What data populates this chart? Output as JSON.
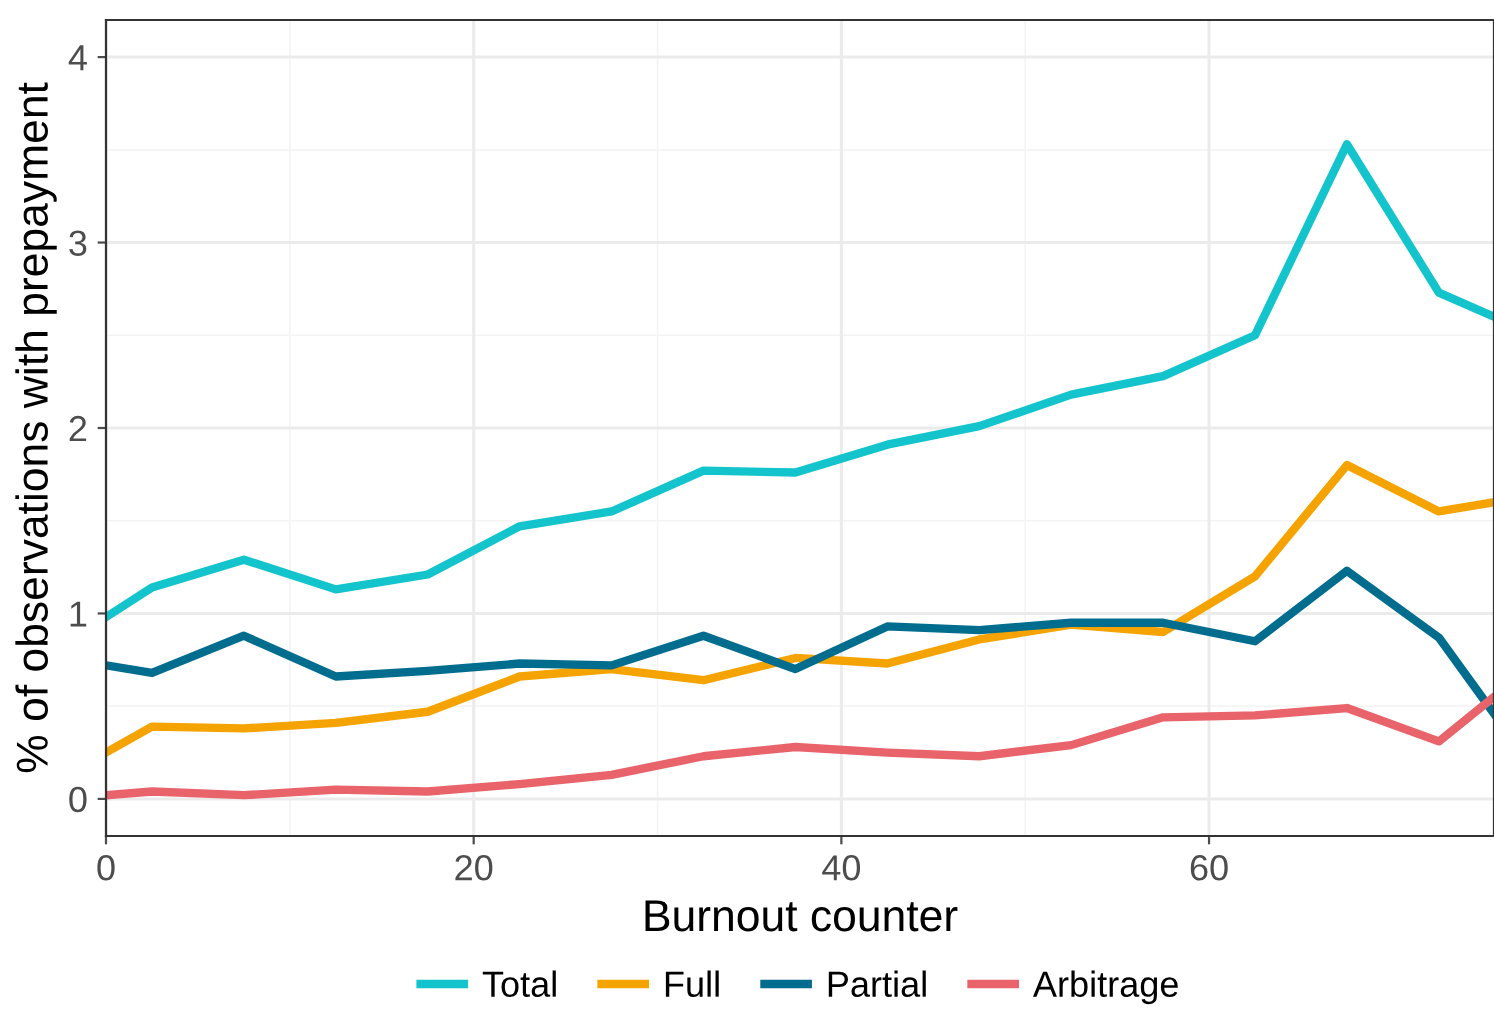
{
  "chart_data": {
    "type": "line",
    "xlabel": "Burnout counter",
    "ylabel": "% of observations with prepayment",
    "x": [
      0,
      2.5,
      7.5,
      12.5,
      17.5,
      22.5,
      27.5,
      32.5,
      37.5,
      42.5,
      47.5,
      52.5,
      57.5,
      62.5,
      67.5,
      72.5,
      75.5
    ],
    "series": [
      {
        "name": "Total",
        "color": "#14c4cc",
        "values": [
          0.98,
          1.14,
          1.29,
          1.13,
          1.21,
          1.47,
          1.55,
          1.77,
          1.76,
          1.91,
          2.01,
          2.18,
          2.28,
          2.5,
          3.53,
          2.73,
          2.6
        ]
      },
      {
        "name": "Full",
        "color": "#f5a300",
        "values": [
          0.25,
          0.39,
          0.38,
          0.41,
          0.47,
          0.66,
          0.7,
          0.64,
          0.76,
          0.73,
          0.86,
          0.94,
          0.9,
          1.2,
          1.8,
          1.55,
          1.6
        ]
      },
      {
        "name": "Partial",
        "color": "#006d8f",
        "values": [
          0.72,
          0.68,
          0.88,
          0.66,
          0.69,
          0.73,
          0.72,
          0.88,
          0.7,
          0.93,
          0.91,
          0.95,
          0.95,
          0.85,
          1.23,
          0.87,
          0.46
        ]
      },
      {
        "name": "Arbitrage",
        "color": "#e8636a",
        "values": [
          0.02,
          0.04,
          0.02,
          0.05,
          0.04,
          0.08,
          0.13,
          0.23,
          0.28,
          0.25,
          0.23,
          0.29,
          0.44,
          0.45,
          0.49,
          0.31,
          0.55
        ]
      }
    ],
    "xlim": [
      0,
      75.5
    ],
    "ylim": [
      -0.2,
      4.2
    ],
    "xticks": [
      0,
      20,
      40,
      60
    ],
    "yticks": [
      0,
      1,
      2,
      3,
      4
    ],
    "grid": true,
    "legend": "bottom",
    "line_style": "solid",
    "marker": "none"
  }
}
